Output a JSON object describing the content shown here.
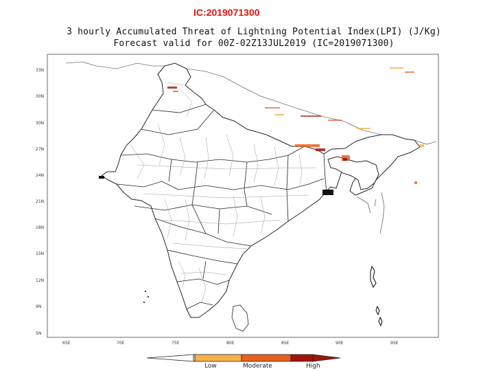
{
  "header": {
    "ic_label": "IC:2019071300",
    "title_line1": "3 hourly Accumulated Threat of Lightning Potential Index(LPI) (J/Kg)",
    "title_line2": "Forecast valid for 00Z-02Z13JUL2019 (IC=2019071300)"
  },
  "axes": {
    "lat_ticks": [
      "33N",
      "30N",
      "30N",
      "27N",
      "24N",
      "21N",
      "18N",
      "15N",
      "12N",
      "9N",
      "5N"
    ],
    "lon_ticks": [
      "65E",
      "70E",
      "75E",
      "80E",
      "85E",
      "90E",
      "95E"
    ]
  },
  "legend": {
    "labels": [
      "Low",
      "Moderate",
      "High"
    ],
    "colors": {
      "white": "#ffffff",
      "low": "#f6b24a",
      "moderate": "#e8601c",
      "high": "#a2140e"
    }
  },
  "map_colors": {
    "state_border": "#222222",
    "district_border": "#999999",
    "frame": "#444444"
  }
}
